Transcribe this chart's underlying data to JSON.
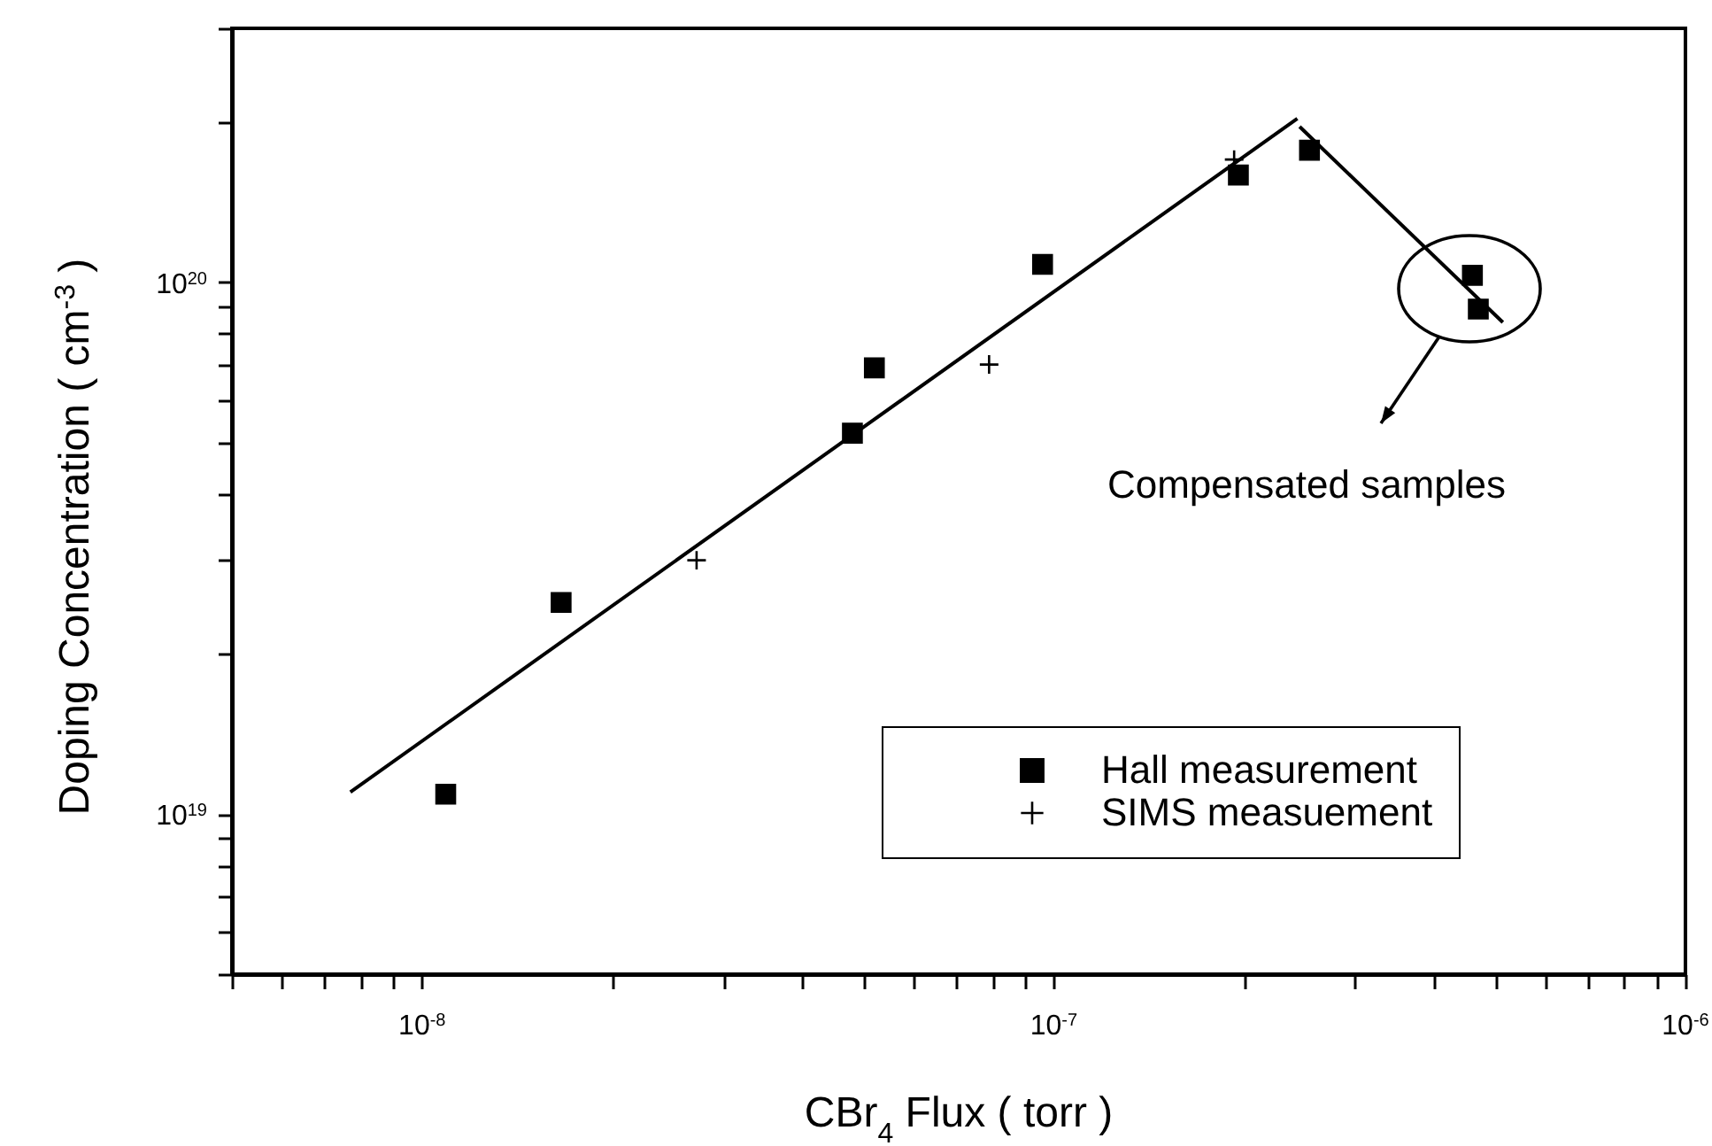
{
  "chart_data": {
    "type": "scatter",
    "xlabel": "CBr$_{4}$ Flux ( torr )",
    "ylabel": "Doping Concentration ( cm$^{-3}$ )",
    "log": "xy",
    "grid": false,
    "legend": "bottom right",
    "xlim": [
      5e-09,
      1e-06
    ],
    "xticks": [
      {
        "value": 5e-09,
        "label": null
      },
      {
        "value": 6e-09,
        "label": null
      },
      {
        "value": 7e-09,
        "label": null
      },
      {
        "value": 8e-09,
        "label": null
      },
      {
        "value": 9e-09,
        "label": null
      },
      {
        "value": 1e-08,
        "label": "10$^{-8}$"
      },
      {
        "value": 2e-08,
        "label": null
      },
      {
        "value": 3e-08,
        "label": null
      },
      {
        "value": 4e-08,
        "label": null
      },
      {
        "value": 5e-08,
        "label": null
      },
      {
        "value": 6e-08,
        "label": null
      },
      {
        "value": 7e-08,
        "label": null
      },
      {
        "value": 8e-08,
        "label": null
      },
      {
        "value": 9e-08,
        "label": null
      },
      {
        "value": 1e-07,
        "label": "10$^{-7}$"
      },
      {
        "value": 2e-07,
        "label": null
      },
      {
        "value": 3e-07,
        "label": null
      },
      {
        "value": 4e-07,
        "label": null
      },
      {
        "value": 5e-07,
        "label": null
      },
      {
        "value": 6e-07,
        "label": null
      },
      {
        "value": 7e-07,
        "label": null
      },
      {
        "value": 8e-07,
        "label": null
      },
      {
        "value": 9e-07,
        "label": null
      },
      {
        "value": 1e-06,
        "label": "10$^{-6}$"
      }
    ],
    "ylim": [
      5e+18,
      3e+20
    ],
    "yticks": [
      {
        "value": 5e+18,
        "label": null
      },
      {
        "value": 6e+18,
        "label": null
      },
      {
        "value": 7e+18,
        "label": null
      },
      {
        "value": 8e+18,
        "label": null
      },
      {
        "value": 9e+18,
        "label": null
      },
      {
        "value": 1e+19,
        "label": "10$^{19}$"
      },
      {
        "value": 2e+19,
        "label": null
      },
      {
        "value": 3e+19,
        "label": null
      },
      {
        "value": 4e+19,
        "label": null
      },
      {
        "value": 5e+19,
        "label": null
      },
      {
        "value": 6e+19,
        "label": null
      },
      {
        "value": 7e+19,
        "label": null
      },
      {
        "value": 8e+19,
        "label": null
      },
      {
        "value": 9e+19,
        "label": null
      },
      {
        "value": 1e+20,
        "label": "10$^{20}$"
      },
      {
        "value": 2e+20,
        "label": null
      },
      {
        "value": 3e+20,
        "label": null
      }
    ],
    "series": [
      {
        "name": "Hall measurement",
        "marker": "square",
        "color": "#000000",
        "x": [
          1.09e-08,
          1.66e-08,
          4.8e-08,
          5.2e-08,
          9.6e-08,
          1.96e-07,
          2.54e-07,
          4.6e-07,
          4.7e-07
        ],
        "values": [
          1.09e+19,
          2.5e+19,
          5.2e+19,
          6.9e+19,
          1.08e+20,
          1.59e+20,
          1.77e+20,
          1.03e+20,
          8.9e+19
        ]
      },
      {
        "name": "SIMS measuement",
        "marker": "cross",
        "color": "#000000",
        "x": [
          2.72e-08,
          7.9e-08,
          1.93e-07
        ],
        "values": [
          3e+19,
          7e+19,
          1.7e+20
        ]
      },
      {
        "type": "line",
        "color": "#000000",
        "x": [
          7.7e-09,
          2.43e-07
        ],
        "values": [
          1.1e+19,
          2.03e+20
        ]
      },
      {
        "type": "line",
        "color": "#000000",
        "x": [
          2.45e-07,
          5.14e-07
        ],
        "values": [
          1.96e+20,
          8.4e+19
        ]
      }
    ],
    "annotations": [
      "Compensated samples"
    ]
  }
}
